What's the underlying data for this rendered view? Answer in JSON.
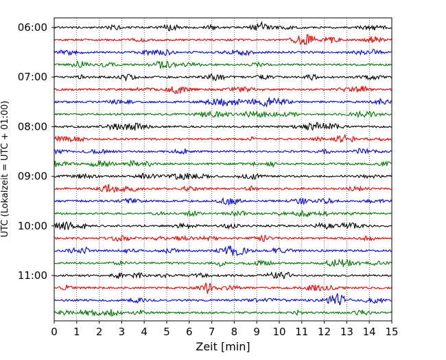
{
  "chart_data": {
    "type": "line",
    "title": "",
    "xlabel": "Zeit  [min]",
    "ylabel": "UTC (Lokalzeit = UTC + 01:00)",
    "xlim": [
      0,
      15
    ],
    "x_ticks": [
      "0",
      "1",
      "2",
      "3",
      "4",
      "5",
      "6",
      "7",
      "8",
      "9",
      "10",
      "11",
      "12",
      "13",
      "14",
      "15"
    ],
    "y_tick_labels": [
      "06:00",
      "07:00",
      "08:00",
      "09:00",
      "10:00",
      "11:00"
    ],
    "grid": "vertical dotted",
    "series_colors": [
      "#000000",
      "#ff0000",
      "#0000ff",
      "#007700"
    ],
    "traces": [
      {
        "start": "06:00",
        "color": "#000000"
      },
      {
        "start": "06:15",
        "color": "#ff0000"
      },
      {
        "start": "06:30",
        "color": "#0000ff"
      },
      {
        "start": "06:45",
        "color": "#007700"
      },
      {
        "start": "07:00",
        "color": "#000000"
      },
      {
        "start": "07:15",
        "color": "#ff0000"
      },
      {
        "start": "07:30",
        "color": "#0000ff"
      },
      {
        "start": "07:45",
        "color": "#007700"
      },
      {
        "start": "08:00",
        "color": "#000000"
      },
      {
        "start": "08:15",
        "color": "#ff0000"
      },
      {
        "start": "08:30",
        "color": "#0000ff"
      },
      {
        "start": "08:45",
        "color": "#007700"
      },
      {
        "start": "09:00",
        "color": "#000000"
      },
      {
        "start": "09:15",
        "color": "#ff0000"
      },
      {
        "start": "09:30",
        "color": "#0000ff"
      },
      {
        "start": "09:45",
        "color": "#007700"
      },
      {
        "start": "10:00",
        "color": "#000000"
      },
      {
        "start": "10:15",
        "color": "#ff0000"
      },
      {
        "start": "10:30",
        "color": "#0000ff"
      },
      {
        "start": "10:45",
        "color": "#007700"
      },
      {
        "start": "11:00",
        "color": "#000000"
      },
      {
        "start": "11:15",
        "color": "#ff0000"
      },
      {
        "start": "11:30",
        "color": "#0000ff"
      },
      {
        "start": "11:45",
        "color": "#007700"
      }
    ]
  }
}
